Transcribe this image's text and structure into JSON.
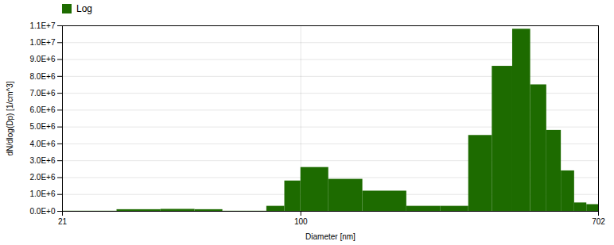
{
  "chart_data": {
    "type": "histogram",
    "xlabel": "Diameter [nm]",
    "ylabel": "dN/dlog(Dp) [1/cm^3]",
    "bins": [
      21,
      30,
      40,
      50,
      60,
      70,
      80,
      90,
      100,
      120,
      150,
      200,
      250,
      300,
      350,
      400,
      450,
      500,
      550,
      600,
      650,
      702
    ],
    "series": [
      {
        "name": "Log",
        "color": "#1d6b00",
        "values": [
          10000,
          100000,
          120000,
          100000,
          10000,
          10000,
          300000,
          1800000,
          2600000,
          1900000,
          1200000,
          300000,
          300000,
          4500000,
          8600000,
          10800000,
          7500000,
          4800000,
          2400000,
          500000,
          400000
        ]
      }
    ],
    "log": "x",
    "xlim": [
      21,
      702
    ],
    "xticks": [
      21,
      100,
      702
    ],
    "ylim": [
      0,
      11000000
    ],
    "yticks": [
      {
        "value": 0,
        "label": "0.0E+0"
      },
      {
        "value": 1000000,
        "label": "1.0E+6"
      },
      {
        "value": 2000000,
        "label": "2.0E+6"
      },
      {
        "value": 3000000,
        "label": "3.0E+6"
      },
      {
        "value": 4000000,
        "label": "4.0E+6"
      },
      {
        "value": 5000000,
        "label": "5.0E+6"
      },
      {
        "value": 6000000,
        "label": "6.0E+6"
      },
      {
        "value": 7000000,
        "label": "7.0E+6"
      },
      {
        "value": 8000000,
        "label": "8.0E+6"
      },
      {
        "value": 9000000,
        "label": "9.0E+6"
      },
      {
        "value": 10000000,
        "label": "1.0E+7"
      },
      {
        "value": 11000000,
        "label": "1.1E+7"
      }
    ],
    "grid": true,
    "legend": "upper left"
  }
}
